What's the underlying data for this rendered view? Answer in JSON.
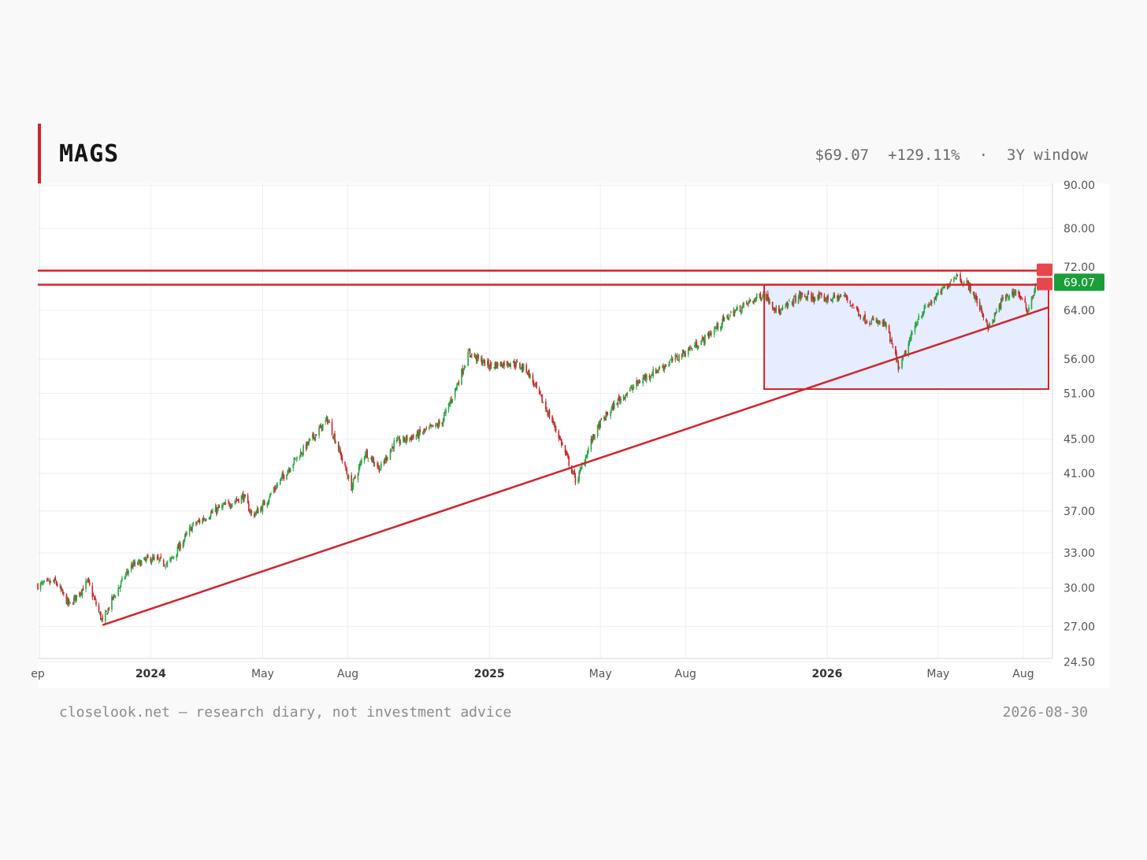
{
  "header": {
    "ticker": "MAGS",
    "price": "$69.07",
    "change": "+129.11%",
    "separator": "·",
    "window": "3Y window"
  },
  "footer": {
    "source": "closelook.net — research diary, not investment advice",
    "date": "2026-08-30"
  },
  "colors": {
    "accent": "#d3232a",
    "up": "#26a641",
    "down": "#d3232a",
    "last_price_badge": "#1a9e3a",
    "box_fill": "#e6edff"
  },
  "chart_data": {
    "type": "candlestick",
    "title": "",
    "xlabel": "",
    "ylabel": "",
    "scale": "log",
    "ylim": [
      23.5,
      94
    ],
    "xlim": [
      "2023-09-01",
      "2026-08-30"
    ],
    "grid": true,
    "y_ticks": [
      "24.50",
      "27.00",
      "30.00",
      "33.00",
      "37.00",
      "41.00",
      "45.00",
      "51.00",
      "56.00",
      "64.00",
      "72.00",
      "80.00",
      "90.00"
    ],
    "x_ticks": [
      {
        "label": "ep",
        "date": "2023-09-01",
        "bold": false
      },
      {
        "label": "2024",
        "date": "2024-01-01",
        "bold": true
      },
      {
        "label": "May",
        "date": "2024-05-01",
        "bold": false
      },
      {
        "label": "Aug",
        "date": "2024-08-01",
        "bold": false
      },
      {
        "label": "2025",
        "date": "2025-01-01",
        "bold": true
      },
      {
        "label": "May",
        "date": "2025-05-01",
        "bold": false
      },
      {
        "label": "Aug",
        "date": "2025-08-01",
        "bold": false
      },
      {
        "label": "2026",
        "date": "2026-01-01",
        "bold": true
      },
      {
        "label": "May",
        "date": "2026-05-01",
        "bold": false
      },
      {
        "label": "Aug",
        "date": "2026-08-01",
        "bold": false
      }
    ],
    "close_path": [
      [
        "2023-09-01",
        30.2
      ],
      [
        "2023-09-20",
        30.5
      ],
      [
        "2023-10-05",
        28.6
      ],
      [
        "2023-10-25",
        30.5
      ],
      [
        "2023-11-10",
        27.3
      ],
      [
        "2023-11-20",
        29.0
      ],
      [
        "2023-12-10",
        31.8
      ],
      [
        "2024-01-01",
        32.5
      ],
      [
        "2024-01-20",
        32.0
      ],
      [
        "2024-02-15",
        35.5
      ],
      [
        "2024-03-10",
        37.0
      ],
      [
        "2024-04-10",
        38.5
      ],
      [
        "2024-04-20",
        36.5
      ],
      [
        "2024-05-01",
        37.5
      ],
      [
        "2024-06-01",
        42.0
      ],
      [
        "2024-07-10",
        47.5
      ],
      [
        "2024-07-20",
        44.5
      ],
      [
        "2024-08-05",
        39.5
      ],
      [
        "2024-08-20",
        43.5
      ],
      [
        "2024-09-05",
        41.5
      ],
      [
        "2024-09-20",
        44.5
      ],
      [
        "2024-10-15",
        45.5
      ],
      [
        "2024-11-10",
        47.0
      ],
      [
        "2024-11-25",
        51.5
      ],
      [
        "2024-12-10",
        57.0
      ],
      [
        "2024-12-20",
        56.0
      ],
      [
        "2025-01-01",
        55.0
      ],
      [
        "2025-01-25",
        55.5
      ],
      [
        "2025-02-10",
        54.5
      ],
      [
        "2025-02-25",
        50.5
      ],
      [
        "2025-03-15",
        46.0
      ],
      [
        "2025-04-05",
        40.0
      ],
      [
        "2025-04-20",
        44.5
      ],
      [
        "2025-05-01",
        47.0
      ],
      [
        "2025-05-20",
        50.0
      ],
      [
        "2025-06-15",
        53.0
      ],
      [
        "2025-07-20",
        56.0
      ],
      [
        "2025-08-20",
        59.0
      ],
      [
        "2025-09-20",
        63.5
      ],
      [
        "2025-10-25",
        67.0
      ],
      [
        "2025-11-10",
        63.5
      ],
      [
        "2025-12-01",
        66.5
      ],
      [
        "2026-01-01",
        66.0
      ],
      [
        "2026-01-20",
        66.5
      ],
      [
        "2026-02-10",
        62.5
      ],
      [
        "2026-03-05",
        61.5
      ],
      [
        "2026-03-20",
        54.5
      ],
      [
        "2026-04-10",
        63.0
      ],
      [
        "2026-05-05",
        67.5
      ],
      [
        "2026-05-20",
        70.5
      ],
      [
        "2026-06-05",
        68.0
      ],
      [
        "2026-06-25",
        61.0
      ],
      [
        "2026-07-10",
        66.0
      ],
      [
        "2026-07-25",
        67.5
      ],
      [
        "2026-08-05",
        64.0
      ],
      [
        "2026-08-15",
        68.5
      ],
      [
        "2026-08-30",
        69.07
      ]
    ],
    "annotations": {
      "horizontal_lines": [
        {
          "value": 71.3
        },
        {
          "value": 68.6
        }
      ],
      "trendline": {
        "start": [
          "2023-11-10",
          27.1
        ],
        "end": [
          "2026-08-30",
          64.5
        ]
      },
      "box": {
        "start": "2025-10-25",
        "end": "2026-08-30",
        "low": 51.6,
        "high": 68.6
      }
    },
    "last_price": "69.07"
  }
}
